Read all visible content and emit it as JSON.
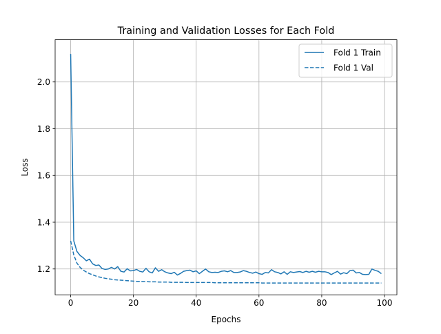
{
  "chart_data": {
    "type": "line",
    "title": "Training and Validation Losses for Each Fold",
    "xlabel": "Epochs",
    "ylabel": "Loss",
    "xlim": [
      -4.95,
      103.95
    ],
    "ylim": [
      1.0895,
      2.1805
    ],
    "xticks": [
      0,
      20,
      40,
      60,
      80,
      100
    ],
    "yticks": [
      1.2,
      1.4,
      1.6,
      1.8,
      2.0
    ],
    "xtick_labels": [
      "0",
      "20",
      "40",
      "60",
      "80",
      "100"
    ],
    "ytick_labels": [
      "1.2",
      "1.4",
      "1.6",
      "1.8",
      "2.0"
    ],
    "grid": true,
    "legend_position": "top-right",
    "series": [
      {
        "name": "Fold 1 Train",
        "style": "solid",
        "color": "#1f77b4",
        "values": [
          2.12,
          1.32,
          1.275,
          1.258,
          1.248,
          1.235,
          1.242,
          1.222,
          1.215,
          1.217,
          1.202,
          1.198,
          1.2,
          1.207,
          1.2,
          1.21,
          1.19,
          1.187,
          1.201,
          1.192,
          1.193,
          1.198,
          1.19,
          1.187,
          1.203,
          1.188,
          1.183,
          1.205,
          1.19,
          1.197,
          1.188,
          1.183,
          1.18,
          1.186,
          1.174,
          1.181,
          1.19,
          1.193,
          1.195,
          1.188,
          1.192,
          1.18,
          1.19,
          1.2,
          1.188,
          1.185,
          1.186,
          1.185,
          1.19,
          1.192,
          1.188,
          1.193,
          1.185,
          1.185,
          1.187,
          1.193,
          1.19,
          1.185,
          1.182,
          1.187,
          1.18,
          1.177,
          1.185,
          1.183,
          1.197,
          1.188,
          1.185,
          1.179,
          1.188,
          1.177,
          1.188,
          1.185,
          1.187,
          1.189,
          1.185,
          1.19,
          1.186,
          1.19,
          1.186,
          1.19,
          1.188,
          1.188,
          1.185,
          1.176,
          1.183,
          1.19,
          1.178,
          1.184,
          1.18,
          1.193,
          1.195,
          1.183,
          1.185,
          1.177,
          1.176,
          1.177,
          1.2,
          1.194,
          1.19,
          1.18
        ]
      },
      {
        "name": "Fold 1 Val",
        "style": "dashed",
        "color": "#1f77b4",
        "values": [
          1.32,
          1.26,
          1.225,
          1.207,
          1.195,
          1.187,
          1.18,
          1.175,
          1.17,
          1.166,
          1.163,
          1.16,
          1.158,
          1.156,
          1.154,
          1.153,
          1.152,
          1.151,
          1.15,
          1.149,
          1.148,
          1.147,
          1.147,
          1.146,
          1.146,
          1.145,
          1.145,
          1.145,
          1.144,
          1.144,
          1.144,
          1.144,
          1.143,
          1.143,
          1.143,
          1.143,
          1.143,
          1.142,
          1.142,
          1.142,
          1.142,
          1.142,
          1.142,
          1.142,
          1.142,
          1.142,
          1.141,
          1.141,
          1.141,
          1.141,
          1.141,
          1.141,
          1.141,
          1.141,
          1.141,
          1.141,
          1.141,
          1.141,
          1.141,
          1.141,
          1.141,
          1.14,
          1.14,
          1.14,
          1.14,
          1.14,
          1.14,
          1.14,
          1.14,
          1.14,
          1.14,
          1.14,
          1.14,
          1.14,
          1.14,
          1.14,
          1.14,
          1.14,
          1.14,
          1.14,
          1.14,
          1.14,
          1.14,
          1.14,
          1.14,
          1.14,
          1.14,
          1.14,
          1.14,
          1.14,
          1.14,
          1.14,
          1.14,
          1.14,
          1.14,
          1.14,
          1.14,
          1.14,
          1.14,
          1.14
        ]
      }
    ]
  }
}
